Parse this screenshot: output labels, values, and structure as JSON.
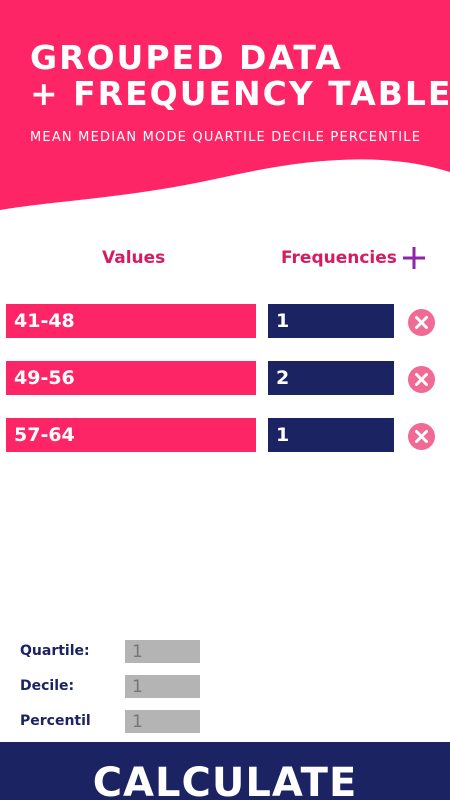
{
  "theme": {
    "accent": "#fe2566",
    "navy": "#1c2362",
    "label_color": "#d81b60",
    "remove_color": "#f06a93"
  },
  "header": {
    "title_line1": "GROUPED DATA",
    "title_line2": "+ FREQUENCY TABLE",
    "subtitle": "MEAN MEDIAN MODE QUARTILE DECILE PERCENTILE"
  },
  "table": {
    "values_label": "Values",
    "frequencies_label": "Frequencies",
    "add_icon": "plus-icon",
    "remove_icon": "close-circle-icon",
    "rows": [
      {
        "value": "41-48",
        "frequency": "1"
      },
      {
        "value": "49-56",
        "frequency": "2"
      },
      {
        "value": "57-64",
        "frequency": "1"
      }
    ]
  },
  "params": {
    "quartile_label": "Quartile:",
    "quartile_placeholder": "1",
    "decile_label": "Decile:",
    "decile_placeholder": "1",
    "percentile_label": "Percentil",
    "percentile_placeholder": "1"
  },
  "calculate_label": "CALCULATE"
}
